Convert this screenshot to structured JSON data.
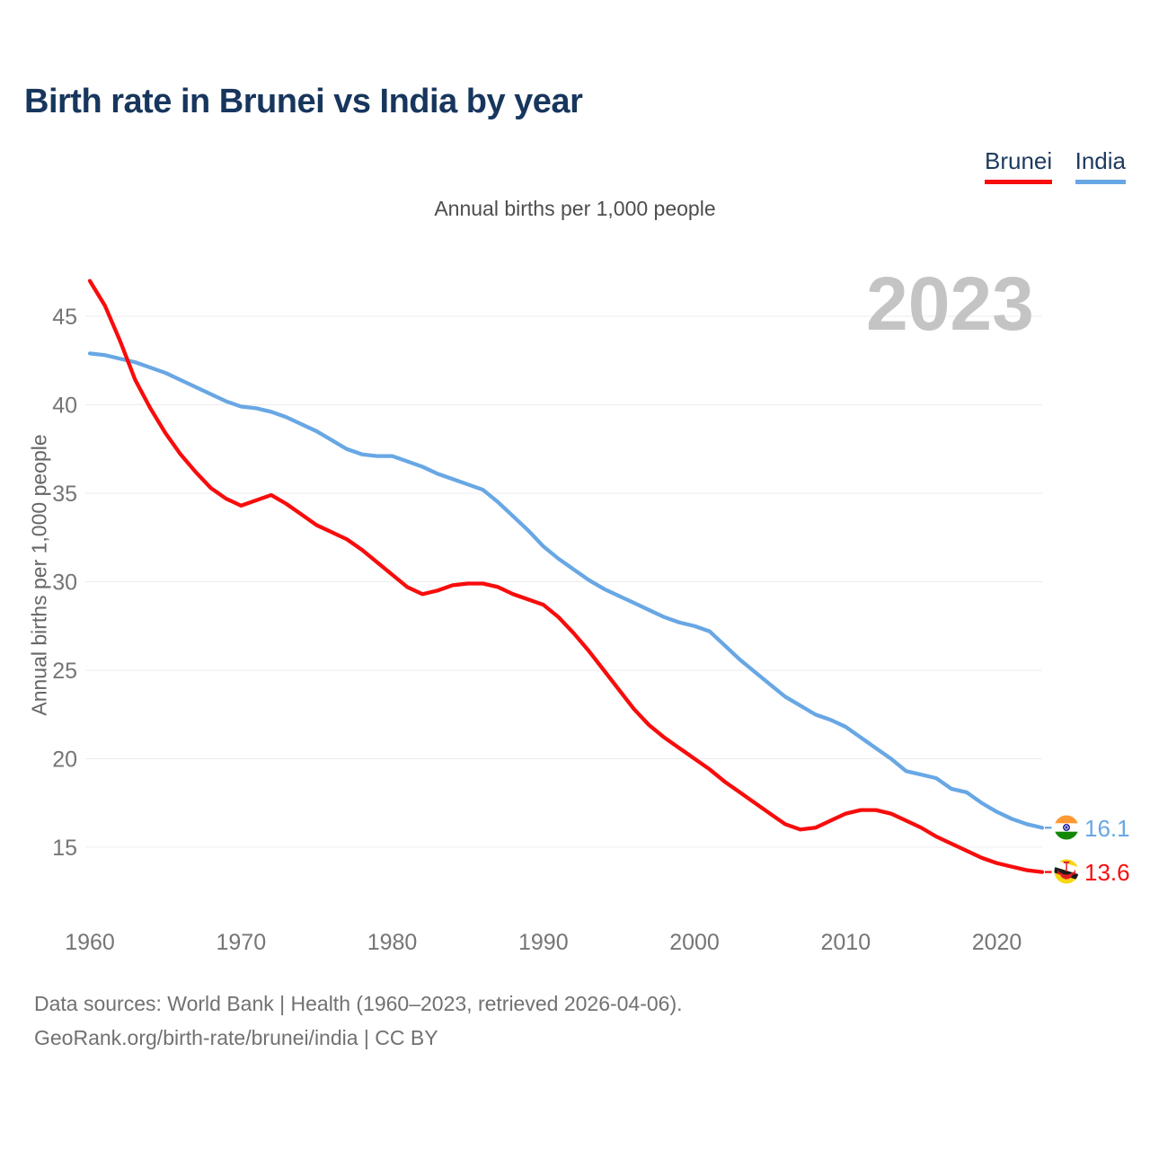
{
  "header": {
    "title": "Birth rate in Brunei vs India by year",
    "subtitle": "Annual births per 1,000 people"
  },
  "legend": {
    "items": [
      {
        "label": "Brunei",
        "color": "#F80C0C"
      },
      {
        "label": "India",
        "color": "#68A7E4"
      }
    ]
  },
  "watermark": "2023",
  "chart_data": {
    "type": "line",
    "x_start": 1960,
    "x_end": 2023,
    "x_ticks": [
      1960,
      1970,
      1980,
      1990,
      2000,
      2010,
      2020
    ],
    "y_ticks": [
      15,
      20,
      25,
      30,
      35,
      40,
      45
    ],
    "ylim": [
      13,
      47.5
    ],
    "xlim": [
      1960,
      2023
    ],
    "grid": "horizontal",
    "legend_position": "top-right",
    "xlabel": "",
    "ylabel": "Annual births per 1,000 people",
    "series": [
      {
        "name": "India",
        "color": "#68A7E4",
        "end_label": "16.1",
        "flag": "india",
        "values": [
          42.9,
          42.8,
          42.6,
          42.4,
          42.1,
          41.8,
          41.4,
          41.0,
          40.6,
          40.2,
          39.9,
          39.8,
          39.6,
          39.3,
          38.9,
          38.5,
          38.0,
          37.5,
          37.2,
          37.1,
          37.1,
          36.8,
          36.5,
          36.1,
          35.8,
          35.5,
          35.2,
          34.5,
          33.7,
          32.9,
          32.0,
          31.3,
          30.7,
          30.1,
          29.6,
          29.2,
          28.8,
          28.4,
          28.0,
          27.7,
          27.5,
          27.2,
          26.4,
          25.6,
          24.9,
          24.2,
          23.5,
          23.0,
          22.5,
          22.2,
          21.8,
          21.2,
          20.6,
          20.0,
          19.3,
          19.1,
          18.9,
          18.3,
          18.1,
          17.5,
          17.0,
          16.6,
          16.3,
          16.1
        ]
      },
      {
        "name": "Brunei",
        "color": "#F80C0C",
        "end_label": "13.6",
        "flag": "brunei",
        "values": [
          47.0,
          45.6,
          43.6,
          41.4,
          39.8,
          38.4,
          37.2,
          36.2,
          35.3,
          34.7,
          34.3,
          34.6,
          34.9,
          34.4,
          33.8,
          33.2,
          32.8,
          32.4,
          31.8,
          31.1,
          30.4,
          29.7,
          29.3,
          29.5,
          29.8,
          29.9,
          29.9,
          29.7,
          29.3,
          29.0,
          28.7,
          28.0,
          27.1,
          26.1,
          25.0,
          23.9,
          22.8,
          21.9,
          21.2,
          20.6,
          20.0,
          19.4,
          18.7,
          18.1,
          17.5,
          16.9,
          16.3,
          16.0,
          16.1,
          16.5,
          16.9,
          17.1,
          17.1,
          16.9,
          16.5,
          16.1,
          15.6,
          15.2,
          14.8,
          14.4,
          14.1,
          13.9,
          13.7,
          13.6
        ]
      }
    ]
  },
  "footer": {
    "line1": "Data sources: World Bank | Health (1960–2023, retrieved 2026-04-06).",
    "line2": "GeoRank.org/birth-rate/brunei/india | CC BY"
  }
}
